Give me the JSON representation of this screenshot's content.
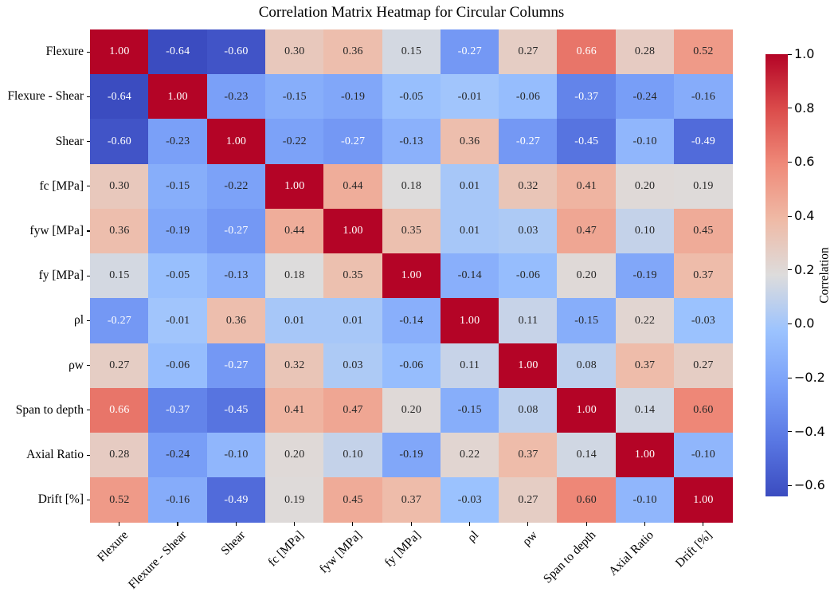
{
  "chart_data": {
    "type": "heatmap",
    "title": "Correlation Matrix Heatmap for Circular Columns",
    "categories": [
      "Flexure",
      "Flexure - Shear",
      "Shear",
      "fc [MPa]",
      "fyw [MPa]",
      "fy [MPa]",
      "ρl",
      "ρw",
      "Span to depth",
      "Axial Ratio",
      "Drift [%]"
    ],
    "matrix": [
      [
        1.0,
        -0.64,
        -0.6,
        0.3,
        0.36,
        0.15,
        -0.27,
        0.27,
        0.66,
        0.28,
        0.52
      ],
      [
        -0.64,
        1.0,
        -0.23,
        -0.15,
        -0.19,
        -0.05,
        -0.01,
        -0.06,
        -0.37,
        -0.24,
        -0.16
      ],
      [
        -0.6,
        -0.23,
        1.0,
        -0.22,
        -0.27,
        -0.13,
        0.36,
        -0.27,
        -0.45,
        -0.1,
        -0.49
      ],
      [
        0.3,
        -0.15,
        -0.22,
        1.0,
        0.44,
        0.18,
        0.01,
        0.32,
        0.41,
        0.2,
        0.19
      ],
      [
        0.36,
        -0.19,
        -0.27,
        0.44,
        1.0,
        0.35,
        0.01,
        0.03,
        0.47,
        0.1,
        0.45
      ],
      [
        0.15,
        -0.05,
        -0.13,
        0.18,
        0.35,
        1.0,
        -0.14,
        -0.06,
        0.2,
        -0.19,
        0.37
      ],
      [
        -0.27,
        -0.01,
        0.36,
        0.01,
        0.01,
        -0.14,
        1.0,
        0.11,
        -0.15,
        0.22,
        -0.03
      ],
      [
        0.27,
        -0.06,
        -0.27,
        0.32,
        0.03,
        -0.06,
        0.11,
        1.0,
        0.08,
        0.37,
        0.27
      ],
      [
        0.66,
        -0.37,
        -0.45,
        0.41,
        0.47,
        0.2,
        -0.15,
        0.08,
        1.0,
        0.14,
        0.6
      ],
      [
        0.28,
        -0.24,
        -0.1,
        0.2,
        0.1,
        -0.19,
        0.22,
        0.37,
        0.14,
        1.0,
        -0.1
      ],
      [
        0.52,
        -0.16,
        -0.49,
        0.19,
        0.45,
        0.37,
        -0.03,
        0.27,
        0.6,
        -0.1,
        1.0
      ]
    ],
    "vmin": -0.64,
    "vmax": 1.0,
    "colormap": "coolwarm",
    "colormap_stops": [
      {
        "t": 0.0,
        "color": "#3b4cc0"
      },
      {
        "t": 0.125,
        "color": "#5977e3"
      },
      {
        "t": 0.25,
        "color": "#7aa0f8"
      },
      {
        "t": 0.375,
        "color": "#9cc3fe"
      },
      {
        "t": 0.5,
        "color": "#dddcdc"
      },
      {
        "t": 0.625,
        "color": "#efbaa6"
      },
      {
        "t": 0.75,
        "color": "#ef8a79"
      },
      {
        "t": 0.875,
        "color": "#db4c4b"
      },
      {
        "t": 1.0,
        "color": "#b40426"
      }
    ],
    "annotation_dark_color": "#262626",
    "annotation_light_color": "#ffffff",
    "colorbar": {
      "label": "Correlation",
      "ticks": [
        "1.0",
        "0.8",
        "0.6",
        "0.4",
        "0.2",
        "0.0",
        "−0.2",
        "−0.4",
        "−0.6"
      ],
      "tick_values": [
        1.0,
        0.8,
        0.6,
        0.4,
        0.2,
        0.0,
        -0.2,
        -0.4,
        -0.6
      ]
    },
    "grid": false,
    "legend_position": "right-colorbar"
  }
}
